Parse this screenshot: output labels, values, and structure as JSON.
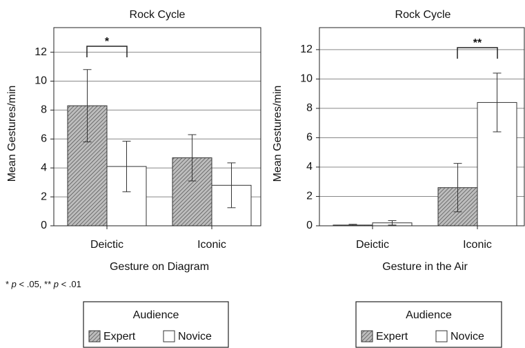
{
  "chart_data": [
    {
      "type": "bar",
      "title": "Rock Cycle",
      "ylabel": "Mean Gestures/min",
      "xlabel": "Gesture on Diagram",
      "categories": [
        "Deictic",
        "Iconic"
      ],
      "series": [
        {
          "name": "Expert",
          "color": "#8a8a8a",
          "values": [
            8.3,
            4.7
          ],
          "errors": [
            2.5,
            1.6
          ]
        },
        {
          "name": "Novice",
          "color": "#ffffff",
          "values": [
            4.1,
            2.8
          ],
          "errors": [
            1.75,
            1.55
          ]
        }
      ],
      "ylim": [
        0,
        13.7
      ],
      "yticks": [
        0,
        2,
        4,
        6,
        8,
        10,
        12
      ],
      "grid": true,
      "annotation": "*",
      "footnote": [
        "* ",
        "p",
        " < .05, ** ",
        "p",
        " < .01"
      ],
      "legend_title": "Audience"
    },
    {
      "type": "bar",
      "title": "Rock Cycle",
      "ylabel": "Mean Gestures/min",
      "xlabel": "Gesture in the Air",
      "categories": [
        "Deictic",
        "Iconic"
      ],
      "series": [
        {
          "name": "Expert",
          "color": "#8a8a8a",
          "values": [
            0.05,
            2.6
          ],
          "errors": [
            0.05,
            1.65
          ]
        },
        {
          "name": "Novice",
          "color": "#ffffff",
          "values": [
            0.2,
            8.4
          ],
          "errors": [
            0.15,
            2.0
          ]
        }
      ],
      "ylim": [
        0,
        13.5
      ],
      "yticks": [
        0,
        2,
        4,
        6,
        8,
        10,
        12
      ],
      "grid": true,
      "annotation": "**",
      "legend_title": "Audience"
    }
  ]
}
